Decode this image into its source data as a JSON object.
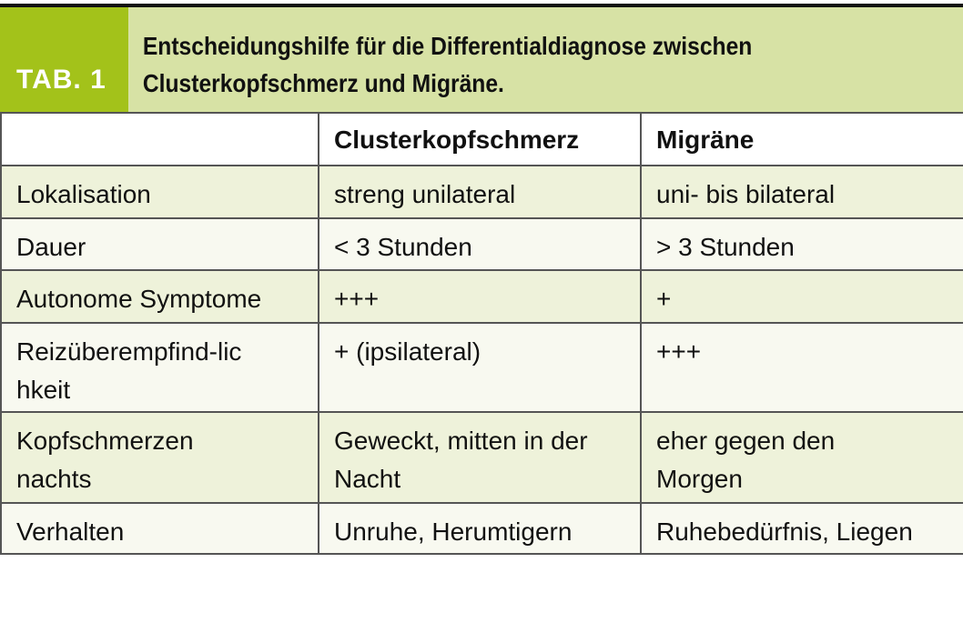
{
  "table": {
    "label": "TAB. 1",
    "title": "Entscheidungshilfe für die Differentialdiagnose zwischen Clusterkopfschmerz und Migräne.",
    "title_lines": [
      "Entscheidungshilfe für die Differentialdiagnose zwischen",
      "Clusterkopfschmerz und Migräne."
    ],
    "columns": [
      "",
      "Clusterkopfschmerz",
      "Migräne"
    ],
    "rows": [
      {
        "criterion": "Lokalisation",
        "cluster": "streng unilateral",
        "migraine": "uni- bis bilateral"
      },
      {
        "criterion": "Dauer",
        "cluster": "< 3 Stunden",
        "migraine": "> 3 Stunden"
      },
      {
        "criterion": "Autonome Symptome",
        "cluster": "+++",
        "migraine": "+"
      },
      {
        "criterion": "Reizüberempfind-lichkeit",
        "cluster": "+ (ipsilateral)",
        "migraine": "+++"
      },
      {
        "criterion": "Kopfschmerzen nachts",
        "cluster": "Geweckt, mitten in der Nacht",
        "migraine": "eher gegen den Morgen"
      },
      {
        "criterion": "Verhalten",
        "cluster": "Unruhe, Herumtigern",
        "migraine": "Ruhebedürfnis, Liegen"
      }
    ],
    "colors": {
      "label_bg": "#a3c21a",
      "title_bg": "#d7e2a5",
      "row_alt": "#eef2da"
    }
  }
}
